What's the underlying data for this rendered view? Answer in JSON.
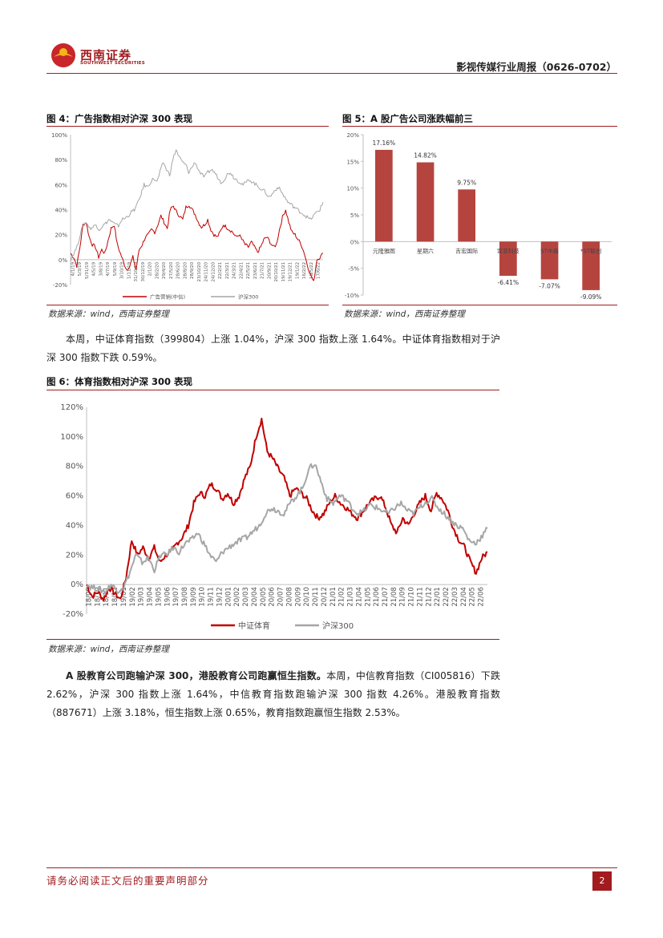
{
  "header": {
    "logo_cn": "西南证券",
    "logo_en": "SOUTHWEST SECURITIES",
    "report_title": "影视传媒行业周报（0626-0702）"
  },
  "fig4": {
    "title": "图 4：广告指数相对沪深 300 表现",
    "source": "数据来源：wind，西南证券整理"
  },
  "fig5": {
    "title": "图 5：A 股广告公司涨跌幅前三",
    "source": "数据来源：wind，西南证券整理"
  },
  "para1": "本周，中证体育指数（399804）上涨 1.04%，沪深 300 指数上涨 1.64%。中证体育指数相对于沪深 300 指数下跌 0.59%。",
  "fig6": {
    "title": "图 6：体育指数相对沪深 300 表现",
    "source": "数据来源：wind，西南证券整理"
  },
  "para2": {
    "bold": "A 股教育公司跑输沪深 300，港股教育公司跑赢恒生指数。",
    "text": "本周，中信教育指数（CI005816）下跌 2.62%，沪深 300 指数上涨 1.64%，中信教育指数跑输沪深 300 指数 4.26%。港股教育指数（887671）上涨 3.18%，恒生指数上涨 0.65%，教育指数跑赢恒生指数 2.53%。"
  },
  "footer": {
    "disclaimer": "请务必阅读正文后的重要声明部分",
    "page": "2"
  },
  "colors": {
    "brand": "#a11b1f",
    "series_red": "#c00000",
    "series_gray": "#a6a6a6",
    "bar": "#b5443f"
  },
  "chart_data": [
    {
      "id": "fig4",
      "type": "line",
      "title": "图 4：广告指数相对沪深 300 表现",
      "ylim": [
        -20,
        100
      ],
      "yticks": [
        "100%",
        "80%",
        "60%",
        "40%",
        "20%",
        "0%",
        "-20%"
      ],
      "xticks": [
        "4/1/19",
        "5/3/19",
        "5/31/19",
        "4/5/19",
        "3/8/19",
        "4/7/19",
        "5/9/19",
        "3/10/19",
        "1/11/19",
        "31/10/19",
        "30/12/19",
        "2/1/20",
        "28/2/20",
        "29/4/20",
        "27/5/20",
        "28/6/20",
        "28/8/20",
        "28/9/20",
        "23/10/20",
        "24/11/20",
        "24/12/20",
        "22/2/21",
        "22/3/21",
        "24/3/21",
        "22/4/21",
        "22/5/21",
        "23/6/21",
        "21/7/21",
        "20/9/21",
        "20/10/21",
        "19/11/21",
        "19/12/21",
        "19/1/22",
        "16/2/22",
        "18/5/22",
        "17/6/22"
      ],
      "series": [
        {
          "name": "广告营销(中信)",
          "color": "#c00000",
          "values": [
            5,
            2,
            -5,
            10,
            28,
            30,
            18,
            12,
            10,
            2,
            8,
            5,
            15,
            25,
            28,
            12,
            5,
            -2,
            -8,
            -5,
            2,
            -8,
            8,
            12,
            18,
            20,
            24,
            22,
            28,
            35,
            30,
            25,
            40,
            43,
            38,
            35,
            32,
            42,
            44,
            40,
            36,
            30,
            26,
            28,
            32,
            24,
            20,
            18,
            22,
            28,
            26,
            24,
            22,
            18,
            20,
            16,
            12,
            10,
            14,
            10,
            6,
            10,
            16,
            18,
            14,
            10,
            12,
            24,
            34,
            40,
            30,
            22,
            20,
            16,
            12,
            5,
            -5,
            -12,
            -18,
            0,
            2,
            5
          ]
        },
        {
          "name": "沪深300",
          "color": "#a6a6a6",
          "values": [
            0,
            5,
            10,
            20,
            28,
            30,
            25,
            26,
            28,
            24,
            27,
            29,
            32,
            30,
            28,
            27,
            32,
            33,
            35,
            38,
            40,
            45,
            52,
            60,
            58,
            62,
            65,
            62,
            70,
            78,
            72,
            68,
            80,
            88,
            82,
            78,
            76,
            70,
            74,
            78,
            72,
            68,
            66,
            70,
            72,
            70,
            66,
            62,
            64,
            68,
            70,
            66,
            64,
            62,
            60,
            62,
            64,
            62,
            60,
            58,
            56,
            54,
            50,
            52,
            56,
            58,
            54,
            50,
            46,
            44,
            42,
            40,
            38,
            36,
            34,
            32,
            35,
            38,
            40,
            46
          ]
        }
      ],
      "legend": "bottom"
    },
    {
      "id": "fig5",
      "type": "bar",
      "title": "图 5：A 股广告公司涨跌幅前三",
      "categories": [
        "元隆雅图",
        "星期六",
        "吉宏国际",
        "宣亚科技",
        "ST中昌",
        "*ST联创"
      ],
      "values": [
        17.16,
        14.82,
        9.75,
        -6.41,
        -7.07,
        -9.09
      ],
      "labels": [
        "17.16%",
        "14.82%",
        "9.75%",
        "-6.41%",
        "-7.07%",
        "-9.09%"
      ],
      "ylim": [
        -10,
        20
      ],
      "yticks": [
        "20%",
        "15%",
        "10%",
        "5%",
        "0%",
        "-5%",
        "-10%"
      ]
    },
    {
      "id": "fig6",
      "type": "line",
      "title": "图 6：体育指数相对沪深 300 表现",
      "ylim": [
        -20,
        120
      ],
      "yticks": [
        "120%",
        "100%",
        "80%",
        "60%",
        "40%",
        "20%",
        "0%",
        "-20%"
      ],
      "xticks": [
        "18/09",
        "18/10",
        "18/11",
        "18/12",
        "19/01",
        "19/02",
        "19/03",
        "19/04",
        "19/05",
        "19/06",
        "19/07",
        "19/08",
        "19/09",
        "19/10",
        "19/11",
        "19/12",
        "20/01",
        "20/02",
        "20/03",
        "20/04",
        "20/05",
        "20/06",
        "20/07",
        "20/08",
        "20/09",
        "20/10",
        "20/11",
        "20/12",
        "21/01",
        "21/02",
        "21/03",
        "21/04",
        "21/05",
        "21/06",
        "21/07",
        "21/08",
        "21/09",
        "21/10",
        "21/11",
        "21/12",
        "22/01",
        "22/02",
        "22/03",
        "22/04",
        "22/05",
        "22/06"
      ],
      "series": [
        {
          "name": "中证体育",
          "color": "#c00000",
          "values": [
            0,
            -8,
            -5,
            -10,
            -2,
            -6,
            -10,
            5,
            30,
            20,
            25,
            18,
            25,
            15,
            20,
            22,
            28,
            32,
            40,
            55,
            62,
            60,
            68,
            65,
            58,
            62,
            55,
            60,
            72,
            80,
            100,
            112,
            90,
            85,
            78,
            72,
            60,
            65,
            62,
            58,
            50,
            45,
            48,
            55,
            60,
            55,
            52,
            48,
            45,
            50,
            55,
            58,
            60,
            52,
            40,
            35,
            45,
            40,
            48,
            55,
            60,
            50,
            62,
            58,
            50,
            38,
            30,
            25,
            15,
            8,
            18,
            22
          ]
        },
        {
          "name": "沪深300",
          "color": "#a6a6a6",
          "values": [
            0,
            -2,
            -3,
            -5,
            0,
            -4,
            -2,
            8,
            20,
            15,
            18,
            10,
            20,
            20,
            25,
            22,
            28,
            30,
            35,
            28,
            20,
            15,
            22,
            25,
            28,
            30,
            32,
            36,
            40,
            48,
            52,
            50,
            48,
            55,
            60,
            65,
            78,
            82,
            70,
            58,
            55,
            60,
            58,
            52,
            48,
            50,
            54,
            52,
            50,
            48,
            52,
            55,
            50,
            48,
            52,
            56,
            58,
            52,
            48,
            44,
            40,
            38,
            30,
            28,
            32,
            38
          ]
        }
      ],
      "legend": "bottom"
    }
  ]
}
